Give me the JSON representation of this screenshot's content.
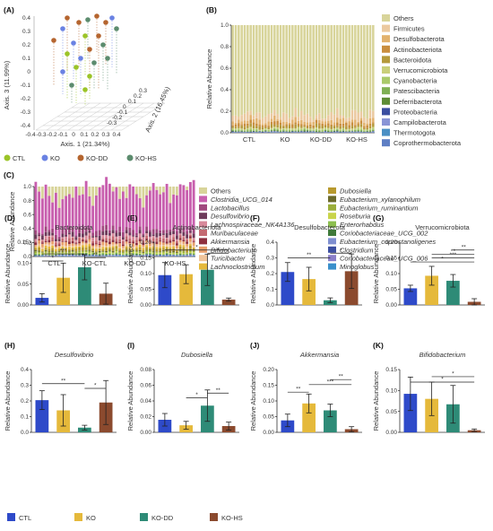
{
  "colors": {
    "CTL": "#2E4AC9",
    "KO": "#E5B93B",
    "KO-DD": "#2E8B77",
    "KO-HS": "#8B4A2E"
  },
  "panel_letters": [
    "(A)",
    "(B)",
    "(C)",
    "(D)",
    "(E)",
    "(F)",
    "(G)",
    "(H)",
    "(I)",
    "(J)",
    "(K)"
  ],
  "pcoa": {
    "axis1": "Axis. 1 (21.34%)",
    "axis2": "Axis. 2 (16.45%)",
    "axis3": "Axis. 3 (11.99%)",
    "x_ticks": [
      "-0.4",
      "-0.3",
      "-0.2",
      "-0.1",
      "0",
      "0.1",
      "0.2",
      "0.3",
      "0.4"
    ],
    "y_ticks": [
      "0.4",
      "0.3",
      "0.2",
      "0.1",
      "0",
      "-0.1",
      "-0.2",
      "-0.3",
      "-0.4"
    ],
    "z_ticks": [
      "0.3",
      "0.2",
      "0.1",
      "0",
      "-0.1",
      "-0.2",
      "-0.3"
    ],
    "legend": [
      "CTL",
      "KO",
      "KO-DD",
      "KO-HS"
    ]
  },
  "chart_data": [
    {
      "type": "bar",
      "panel": "B",
      "title": "",
      "ylabel": "Relative Abundance",
      "ylim": [
        0,
        1.0
      ],
      "y_ticks": [
        "0.0",
        "0.2",
        "0.4",
        "0.6",
        "0.8",
        "1.0"
      ],
      "groups": [
        "CTL",
        "KO",
        "KO-DD",
        "KO-HS"
      ],
      "legend": [
        {
          "name": "Others",
          "color": "#D8D49A"
        },
        {
          "name": "Firmicutes",
          "color": "#EBC9A0"
        },
        {
          "name": "Desulfobacterota",
          "color": "#E2B26E"
        },
        {
          "name": "Actinobacteriota",
          "color": "#C98E3F"
        },
        {
          "name": "Bacteroidota",
          "color": "#B59A3C"
        },
        {
          "name": "Verrucomicrobiota",
          "color": "#C9CF7A"
        },
        {
          "name": "Cyanobacteria",
          "color": "#A9C96A"
        },
        {
          "name": "Patescibacteria",
          "color": "#7FB054"
        },
        {
          "name": "Deferribacterota",
          "color": "#5E8C35"
        },
        {
          "name": "Proteobacteria",
          "color": "#3B4EA0"
        },
        {
          "name": "Campilobacterota",
          "color": "#8A95D6"
        },
        {
          "name": "Thermotogota",
          "color": "#4A8FC4"
        },
        {
          "name": "Coprothermobacterota",
          "color": "#5E7FC4"
        }
      ]
    },
    {
      "type": "bar",
      "panel": "C",
      "title": "",
      "ylabel": "Relative Abundance",
      "ylim": [
        0,
        1.0
      ],
      "y_ticks": [
        "0.0",
        "0.2",
        "0.4",
        "0.6",
        "0.8",
        "1.0"
      ],
      "groups": [
        "CTL",
        "KO-CTL",
        "KO-DD",
        "KO-HS"
      ],
      "legend_left": [
        {
          "name": "Others",
          "color": "#D8D49A"
        },
        {
          "name": "Clostridia_UCG_014",
          "color": "#C85FAE"
        },
        {
          "name": "Lactobacillus",
          "color": "#A0487E"
        },
        {
          "name": "Desulfovibrio",
          "color": "#6E3A5A"
        },
        {
          "name": "Lachnospiraceae_NK4A136",
          "color": "#D88A9B"
        },
        {
          "name": "Muribaculaceae",
          "color": "#C46A72"
        },
        {
          "name": "Akkermansia",
          "color": "#8E2F3F"
        },
        {
          "name": "Bifidobacterium",
          "color": "#E8A06C"
        },
        {
          "name": "Turicibacter",
          "color": "#F0C49A"
        },
        {
          "name": "Lachnoclostridium",
          "color": "#E5B93B"
        }
      ],
      "legend_right": [
        {
          "name": "Dubosiella",
          "color": "#B89A2E"
        },
        {
          "name": "Eubacterium_xylanophilum",
          "color": "#6B6A2A"
        },
        {
          "name": "Eubacterium_ruminantium",
          "color": "#9BAE3A"
        },
        {
          "name": "Roseburia",
          "color": "#C9D44A"
        },
        {
          "name": "Enterorhabdus",
          "color": "#8DBF4F"
        },
        {
          "name": "Coriobacteriaceae_UCG_002",
          "color": "#3F7A3A"
        },
        {
          "name": "Eubacterium_coprostanoligenes",
          "color": "#7F8FD0"
        },
        {
          "name": "Clostridium",
          "color": "#3B4EA0"
        },
        {
          "name": "Coriobacteriaceae_UCG_006",
          "color": "#8A7EC8"
        },
        {
          "name": "Minoglobus",
          "color": "#3A8FCB"
        }
      ]
    },
    {
      "type": "bar",
      "panel": "D",
      "title": "Bacteroidota",
      "italic": false,
      "ylabel": "Relative Abundance",
      "ylim": [
        0,
        0.15
      ],
      "y_ticks": [
        "0.00",
        "0.05",
        "0.10",
        "0.15"
      ],
      "categories": [
        "CTL",
        "KO",
        "KO-DD",
        "KO-HS"
      ],
      "values": [
        0.017,
        0.065,
        0.09,
        0.027
      ],
      "errors": [
        0.01,
        0.035,
        0.03,
        0.025
      ],
      "sig": [
        {
          "a": 0,
          "b": 2,
          "label": "***",
          "level": 0.122
        },
        {
          "a": 0,
          "b": 1,
          "label": "*",
          "level": 0.105
        },
        {
          "a": 2,
          "b": 3,
          "label": "**",
          "level": 0.113
        }
      ]
    },
    {
      "type": "bar",
      "panel": "E",
      "title": "Actinobacteriota",
      "italic": false,
      "ylabel": "Relative Abundance",
      "ylim": [
        0,
        0.2
      ],
      "y_ticks": [
        "0.00",
        "0.05",
        "0.10",
        "0.15",
        "0.20"
      ],
      "categories": [
        "CTL",
        "KO",
        "KO-DD",
        "KO-HS"
      ],
      "values": [
        0.095,
        0.098,
        0.112,
        0.017
      ],
      "errors": [
        0.04,
        0.03,
        0.05,
        0.005
      ],
      "sig": [
        {
          "a": 2,
          "b": 3,
          "label": "*",
          "level": 0.165
        },
        {
          "a": 0,
          "b": 3,
          "label": "*",
          "level": 0.175
        }
      ]
    },
    {
      "type": "bar",
      "panel": "F",
      "title": "Desulfobacterota",
      "italic": false,
      "ylabel": "Relative Abundance",
      "ylim": [
        0,
        0.4
      ],
      "y_ticks": [
        "0.0",
        "0.1",
        "0.2",
        "0.3",
        "0.4"
      ],
      "categories": [
        "CTL",
        "KO",
        "KO-DD",
        "KO-HS"
      ],
      "values": [
        0.21,
        0.165,
        0.03,
        0.215
      ],
      "errors": [
        0.06,
        0.075,
        0.015,
        0.11
      ],
      "sig": [
        {
          "a": 0,
          "b": 2,
          "label": "**",
          "level": 0.3
        },
        {
          "a": 2,
          "b": 3,
          "label": "*",
          "level": 0.33
        }
      ]
    },
    {
      "type": "bar",
      "panel": "G",
      "title": "Verrucomicrobiota",
      "italic": false,
      "ylabel": "Relative Abundance",
      "ylim": [
        0,
        0.2
      ],
      "y_ticks": [
        "0.00",
        "0.05",
        "0.10",
        "0.15",
        "0.20"
      ],
      "categories": [
        "CTL",
        "KO",
        "KO-DD",
        "KO-HS"
      ],
      "values": [
        0.053,
        0.093,
        0.077,
        0.01
      ],
      "errors": [
        0.01,
        0.03,
        0.02,
        0.01
      ],
      "sig": [
        {
          "a": 0,
          "b": 3,
          "label": "*",
          "level": 0.137
        },
        {
          "a": 1,
          "b": 3,
          "label": "**",
          "level": 0.162
        },
        {
          "a": 1,
          "b": 3,
          "label": "***",
          "level": 0.15
        },
        {
          "a": 2,
          "b": 3,
          "label": "**",
          "level": 0.175
        }
      ]
    },
    {
      "type": "bar",
      "panel": "H",
      "title": "Desulfovibrio",
      "italic": true,
      "ylabel": "Relative Abundance",
      "ylim": [
        0,
        0.4
      ],
      "y_ticks": [
        "0.0",
        "0.1",
        "0.2",
        "0.3",
        "0.4"
      ],
      "categories": [
        "CTL",
        "KO",
        "KO-DD",
        "KO-HS"
      ],
      "values": [
        0.205,
        0.14,
        0.03,
        0.19
      ],
      "errors": [
        0.06,
        0.1,
        0.015,
        0.14
      ],
      "sig": [
        {
          "a": 0,
          "b": 2,
          "label": "**",
          "level": 0.31
        },
        {
          "a": 2,
          "b": 3,
          "label": "*",
          "level": 0.28
        }
      ]
    },
    {
      "type": "bar",
      "panel": "I",
      "title": "Dubosiella",
      "italic": true,
      "ylabel": "Relative Abundance",
      "ylim": [
        0,
        0.08
      ],
      "y_ticks": [
        "0.00",
        "0.02",
        "0.04",
        "0.06",
        "0.08"
      ],
      "categories": [
        "CTL",
        "KO",
        "KO-DD",
        "KO-HS"
      ],
      "values": [
        0.016,
        0.009,
        0.034,
        0.008
      ],
      "errors": [
        0.008,
        0.005,
        0.02,
        0.005
      ],
      "sig": [
        {
          "a": 1,
          "b": 2,
          "label": "*",
          "level": 0.044
        },
        {
          "a": 2,
          "b": 3,
          "label": "**",
          "level": 0.05
        }
      ]
    },
    {
      "type": "bar",
      "panel": "J",
      "title": "Akkermansia",
      "italic": true,
      "ylabel": "Relative Abundance",
      "ylim": [
        0,
        0.2
      ],
      "y_ticks": [
        "0.00",
        "0.05",
        "0.10",
        "0.15",
        "0.20"
      ],
      "categories": [
        "CTL",
        "KO",
        "KO-DD",
        "KO-HS"
      ],
      "values": [
        0.038,
        0.092,
        0.07,
        0.01
      ],
      "errors": [
        0.02,
        0.03,
        0.02,
        0.008
      ],
      "sig": [
        {
          "a": 0,
          "b": 1,
          "label": "**",
          "level": 0.128
        },
        {
          "a": 1,
          "b": 3,
          "label": "***",
          "level": 0.152
        },
        {
          "a": 2,
          "b": 3,
          "label": "**",
          "level": 0.168
        }
      ]
    },
    {
      "type": "bar",
      "panel": "K",
      "title": "Bifidobacterium",
      "italic": true,
      "ylabel": "Relative Abundance",
      "ylim": [
        0,
        0.15
      ],
      "y_ticks": [
        "0.00",
        "0.05",
        "0.10",
        "0.15"
      ],
      "categories": [
        "CTL",
        "KO",
        "KO-DD",
        "KO-HS"
      ],
      "values": [
        0.092,
        0.08,
        0.067,
        0.005
      ],
      "errors": [
        0.04,
        0.04,
        0.045,
        0.003
      ],
      "sig": [
        {
          "a": 0,
          "b": 3,
          "label": "*",
          "level": 0.12
        },
        {
          "a": 1,
          "b": 3,
          "label": "*",
          "level": 0.133
        }
      ]
    }
  ],
  "bottom_legend": [
    "CTL",
    "KO",
    "KO-DD",
    "KO-HS"
  ]
}
